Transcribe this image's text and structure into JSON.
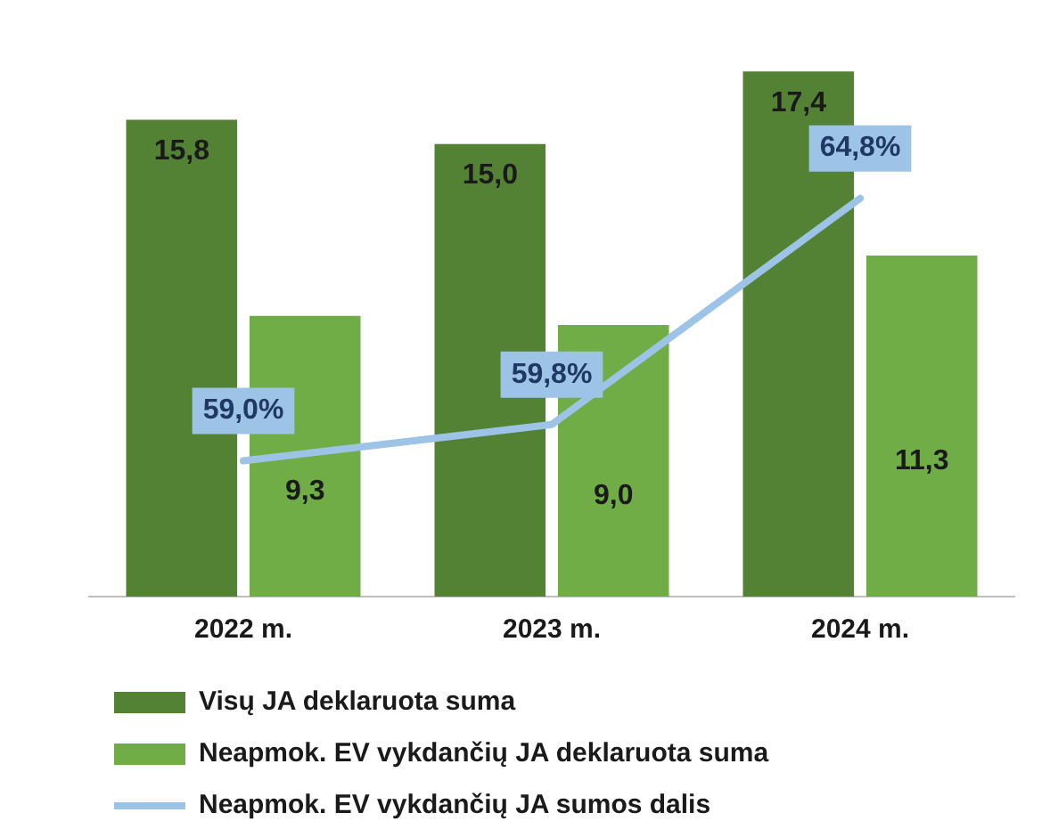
{
  "chart_data": {
    "type": "bar",
    "categories": [
      "2022 m.",
      "2023 m.",
      "2024 m."
    ],
    "series": [
      {
        "name": "Visų JA deklaruota suma",
        "color": "#548235",
        "values": [
          15.8,
          15.0,
          17.4
        ],
        "value_labels": [
          "15,8",
          "15,0",
          "17,4"
        ]
      },
      {
        "name": "Neapmok. EV vykdančių JA deklaruota suma",
        "color": "#70ad47",
        "values": [
          9.3,
          9.0,
          11.3
        ],
        "value_labels": [
          "9,3",
          "9,0",
          "11,3"
        ]
      },
      {
        "name": "Neapmok. EV vykdančių JA sumos dalis",
        "type": "line",
        "axis": "y2",
        "color": "#9dc3e6",
        "values": [
          59.0,
          59.8,
          64.8
        ],
        "value_labels": [
          "59,0%",
          "59,8%",
          "64,8%"
        ]
      }
    ],
    "tick_labels": "x",
    "grid": false,
    "legend": "bottom",
    "marker": "none",
    "line_style": "solid"
  }
}
